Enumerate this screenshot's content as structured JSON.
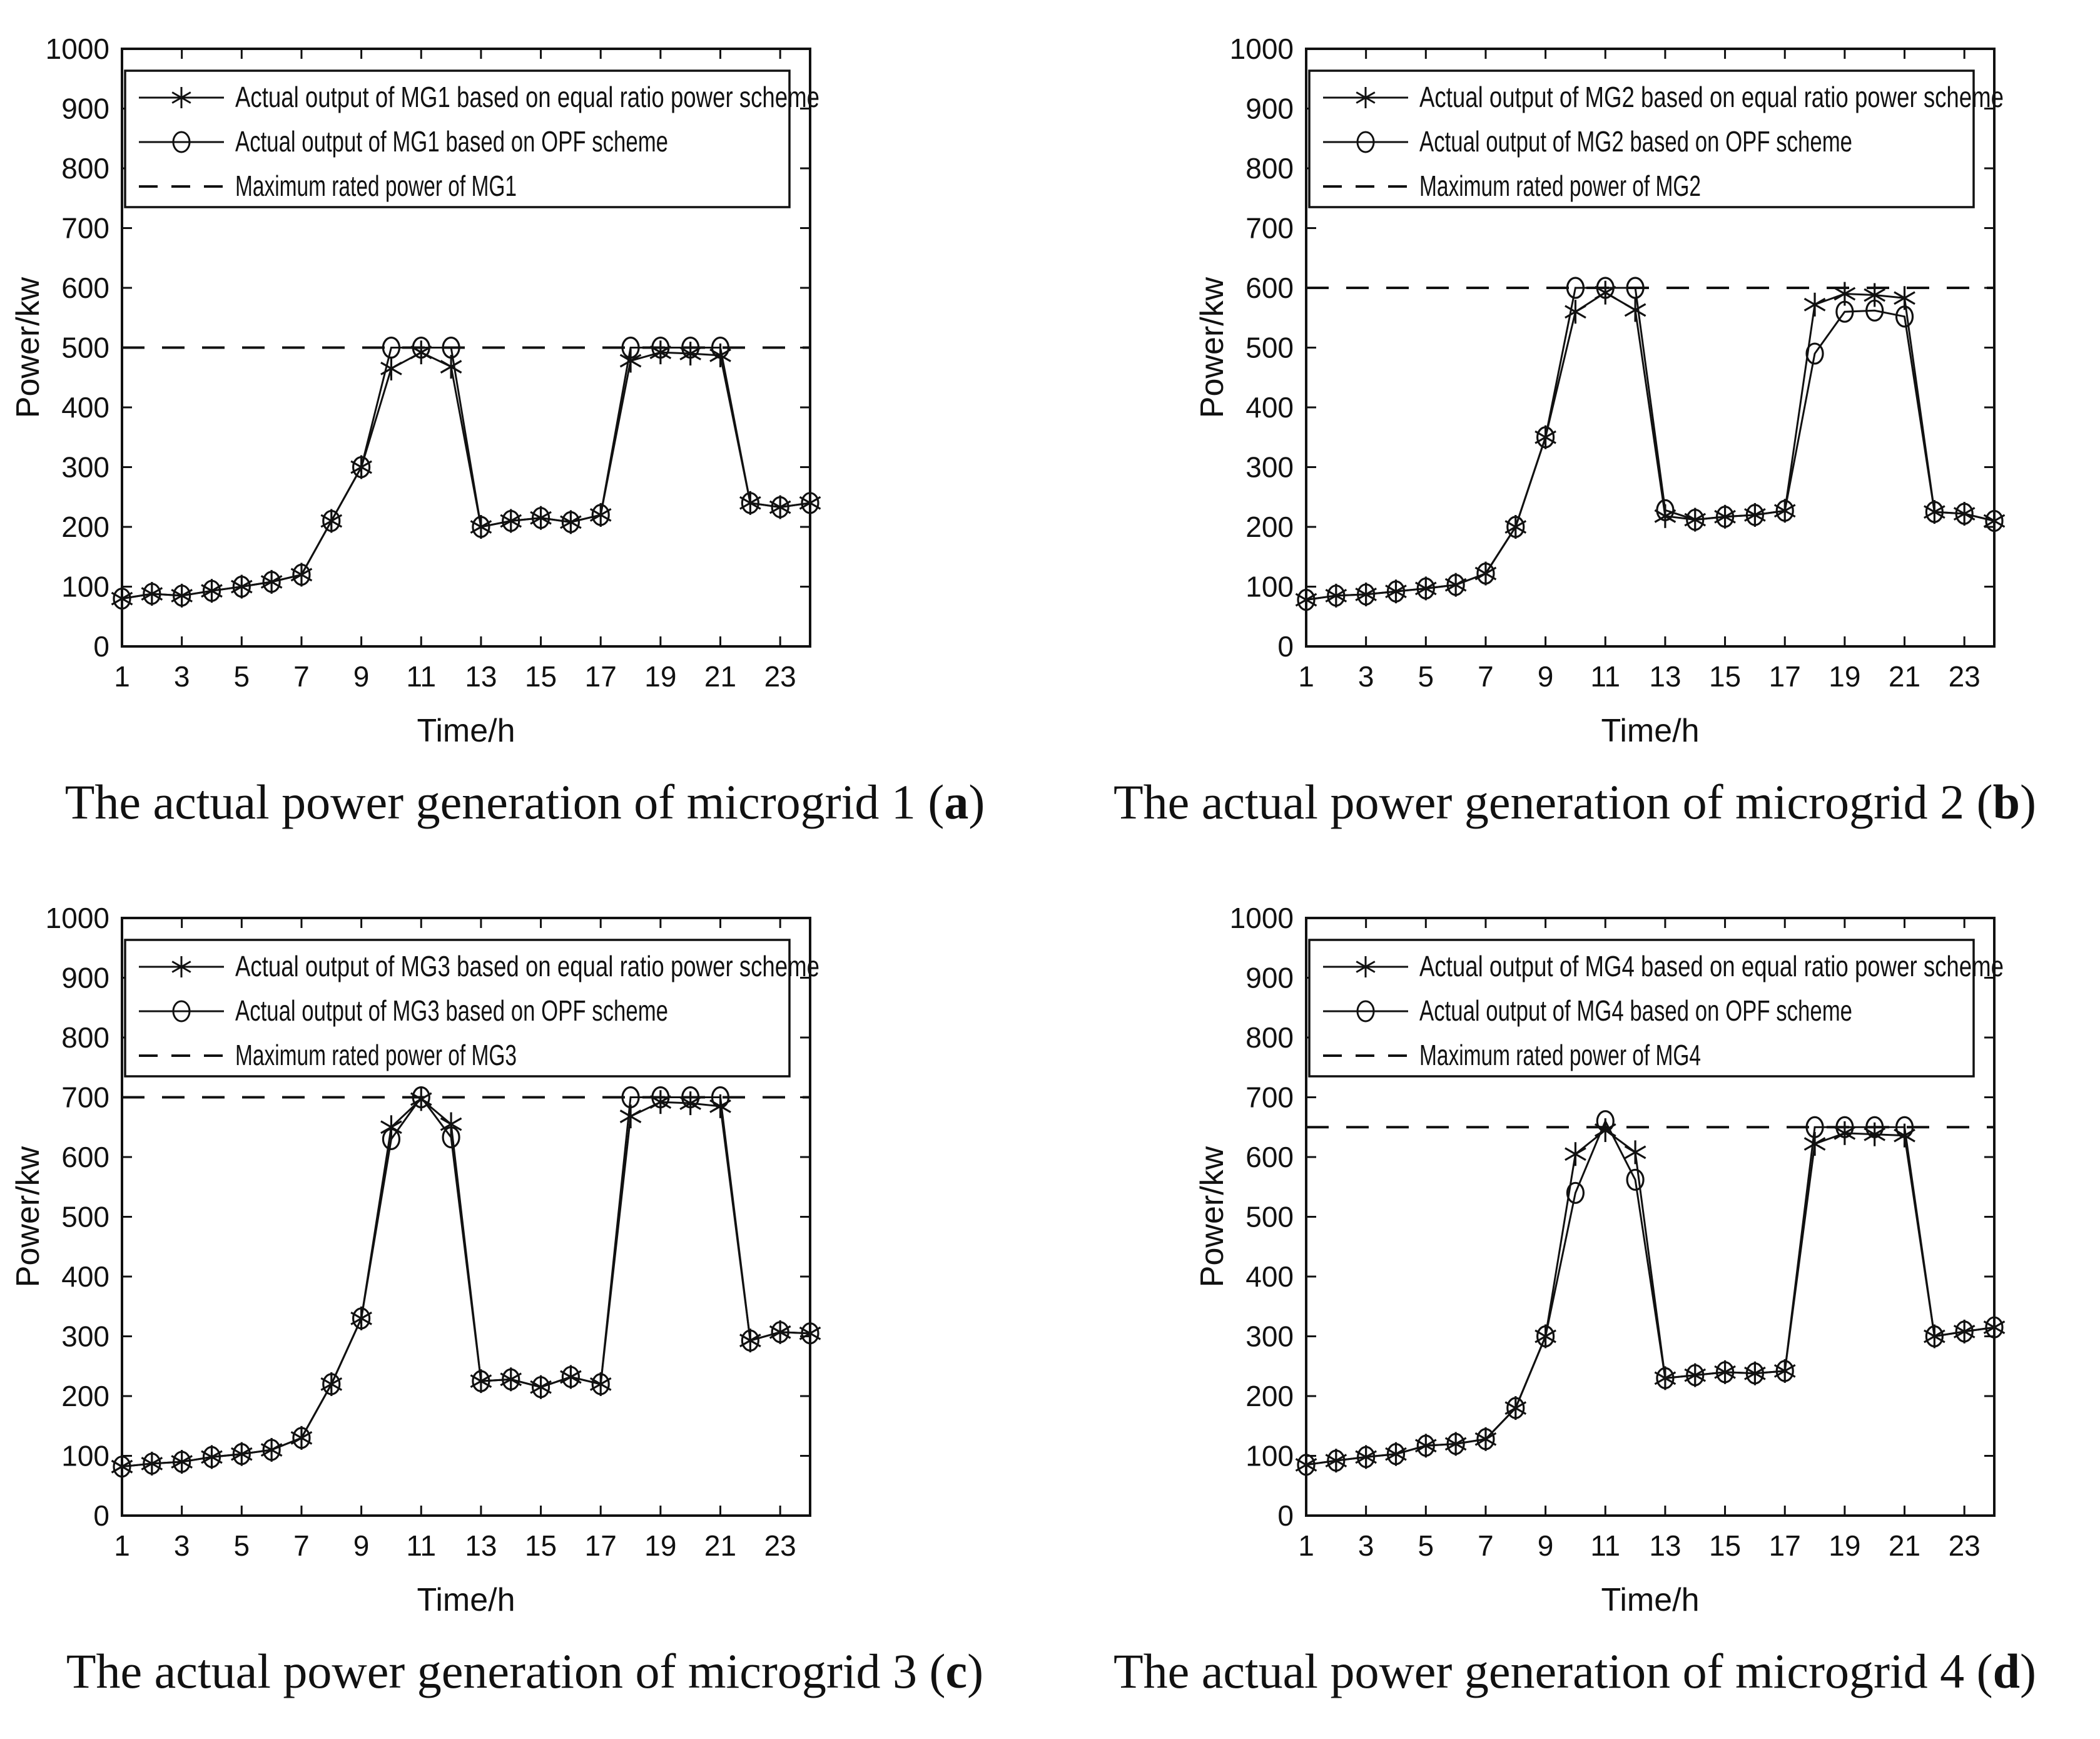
{
  "chart_data": [
    {
      "type": "line",
      "caption_text": "The actual power generation of microgrid 1 (",
      "caption_letter": "a",
      "caption_close": ")",
      "xlabel": "Time/h",
      "ylabel": "Power/kw",
      "ylim": [
        0,
        1000
      ],
      "ytick_step": 100,
      "xticks": [
        1,
        3,
        5,
        7,
        9,
        11,
        13,
        15,
        17,
        19,
        21,
        23
      ],
      "x": [
        1,
        2,
        3,
        4,
        5,
        6,
        7,
        8,
        9,
        10,
        11,
        12,
        13,
        14,
        15,
        16,
        17,
        18,
        19,
        20,
        21,
        22,
        23,
        24
      ],
      "max_rated": {
        "label": "Maximum rated power of MG1",
        "value": 500
      },
      "series": [
        {
          "name": "Actual output of MG1 based on equal ratio power scheme",
          "marker": "star",
          "values": [
            80,
            88,
            85,
            93,
            100,
            108,
            120,
            210,
            300,
            465,
            492,
            468,
            200,
            210,
            215,
            208,
            220,
            478,
            492,
            490,
            487,
            240,
            233,
            240
          ]
        },
        {
          "name": "Actual output of MG1 based on OPF scheme",
          "marker": "circle",
          "values": [
            80,
            88,
            85,
            93,
            100,
            108,
            120,
            210,
            300,
            500,
            500,
            500,
            200,
            210,
            215,
            208,
            220,
            500,
            500,
            500,
            500,
            240,
            233,
            240
          ]
        }
      ],
      "legend_position": "top",
      "grid": false,
      "line_color": "#111111"
    },
    {
      "type": "line",
      "caption_text": "The actual power generation of microgrid 2 (",
      "caption_letter": "b",
      "caption_close": ")",
      "xlabel": "Time/h",
      "ylabel": "Power/kw",
      "ylim": [
        0,
        1000
      ],
      "ytick_step": 100,
      "xticks": [
        1,
        3,
        5,
        7,
        9,
        11,
        13,
        15,
        17,
        19,
        21,
        23
      ],
      "x": [
        1,
        2,
        3,
        4,
        5,
        6,
        7,
        8,
        9,
        10,
        11,
        12,
        13,
        14,
        15,
        16,
        17,
        18,
        19,
        20,
        21,
        22,
        23,
        24
      ],
      "max_rated": {
        "label": "Maximum rated power of MG2",
        "value": 600
      },
      "series": [
        {
          "name": "Actual output of MG2 based on equal ratio power scheme",
          "marker": "star",
          "values": [
            78,
            85,
            87,
            92,
            97,
            103,
            122,
            200,
            350,
            560,
            592,
            563,
            218,
            212,
            217,
            220,
            227,
            572,
            590,
            588,
            583,
            225,
            222,
            210
          ]
        },
        {
          "name": "Actual output of MG2 based on OPF scheme",
          "marker": "circle",
          "values": [
            78,
            85,
            87,
            92,
            97,
            103,
            122,
            200,
            350,
            600,
            600,
            600,
            228,
            212,
            217,
            220,
            227,
            490,
            560,
            562,
            552,
            225,
            222,
            210
          ]
        }
      ],
      "legend_position": "top",
      "grid": false,
      "line_color": "#111111"
    },
    {
      "type": "line",
      "caption_text": "The actual power generation of microgrid 3 (",
      "caption_letter": "c",
      "caption_close": ")",
      "xlabel": "Time/h",
      "ylabel": "Power/kw",
      "ylim": [
        0,
        1000
      ],
      "ytick_step": 100,
      "xticks": [
        1,
        3,
        5,
        7,
        9,
        11,
        13,
        15,
        17,
        19,
        21,
        23
      ],
      "x": [
        1,
        2,
        3,
        4,
        5,
        6,
        7,
        8,
        9,
        10,
        11,
        12,
        13,
        14,
        15,
        16,
        17,
        18,
        19,
        20,
        21,
        22,
        23,
        24
      ],
      "max_rated": {
        "label": "Maximum rated power of MG3",
        "value": 700
      },
      "series": [
        {
          "name": "Actual output of MG3 based on equal ratio power scheme",
          "marker": "star",
          "values": [
            82,
            87,
            90,
            98,
            103,
            110,
            130,
            220,
            330,
            650,
            697,
            655,
            225,
            228,
            215,
            232,
            220,
            668,
            692,
            690,
            685,
            293,
            307,
            305
          ]
        },
        {
          "name": "Actual output of MG3 based on OPF scheme",
          "marker": "circle",
          "values": [
            82,
            87,
            90,
            98,
            103,
            110,
            130,
            220,
            330,
            630,
            700,
            633,
            225,
            228,
            215,
            232,
            220,
            700,
            700,
            700,
            700,
            293,
            307,
            305
          ]
        }
      ],
      "legend_position": "top",
      "grid": false,
      "line_color": "#111111"
    },
    {
      "type": "line",
      "caption_text": "The actual power generation of microgrid 4 (",
      "caption_letter": "d",
      "caption_close": ")",
      "xlabel": "Time/h",
      "ylabel": "Power/kw",
      "ylim": [
        0,
        1000
      ],
      "ytick_step": 100,
      "xticks": [
        1,
        3,
        5,
        7,
        9,
        11,
        13,
        15,
        17,
        19,
        21,
        23
      ],
      "x": [
        1,
        2,
        3,
        4,
        5,
        6,
        7,
        8,
        9,
        10,
        11,
        12,
        13,
        14,
        15,
        16,
        17,
        18,
        19,
        20,
        21,
        22,
        23,
        24
      ],
      "max_rated": {
        "label": "Maximum rated power of MG4",
        "value": 650
      },
      "series": [
        {
          "name": "Actual output of MG4 based on equal ratio power scheme",
          "marker": "star",
          "values": [
            85,
            92,
            98,
            103,
            117,
            120,
            128,
            180,
            300,
            605,
            645,
            608,
            230,
            235,
            240,
            238,
            242,
            622,
            640,
            638,
            636,
            300,
            308,
            315
          ]
        },
        {
          "name": "Actual output of MG4 based on OPF scheme",
          "marker": "circle",
          "values": [
            85,
            92,
            98,
            103,
            117,
            120,
            128,
            180,
            300,
            540,
            660,
            562,
            230,
            235,
            240,
            238,
            242,
            650,
            650,
            650,
            650,
            300,
            308,
            315
          ]
        }
      ],
      "legend_position": "top",
      "grid": false,
      "line_color": "#111111"
    }
  ]
}
